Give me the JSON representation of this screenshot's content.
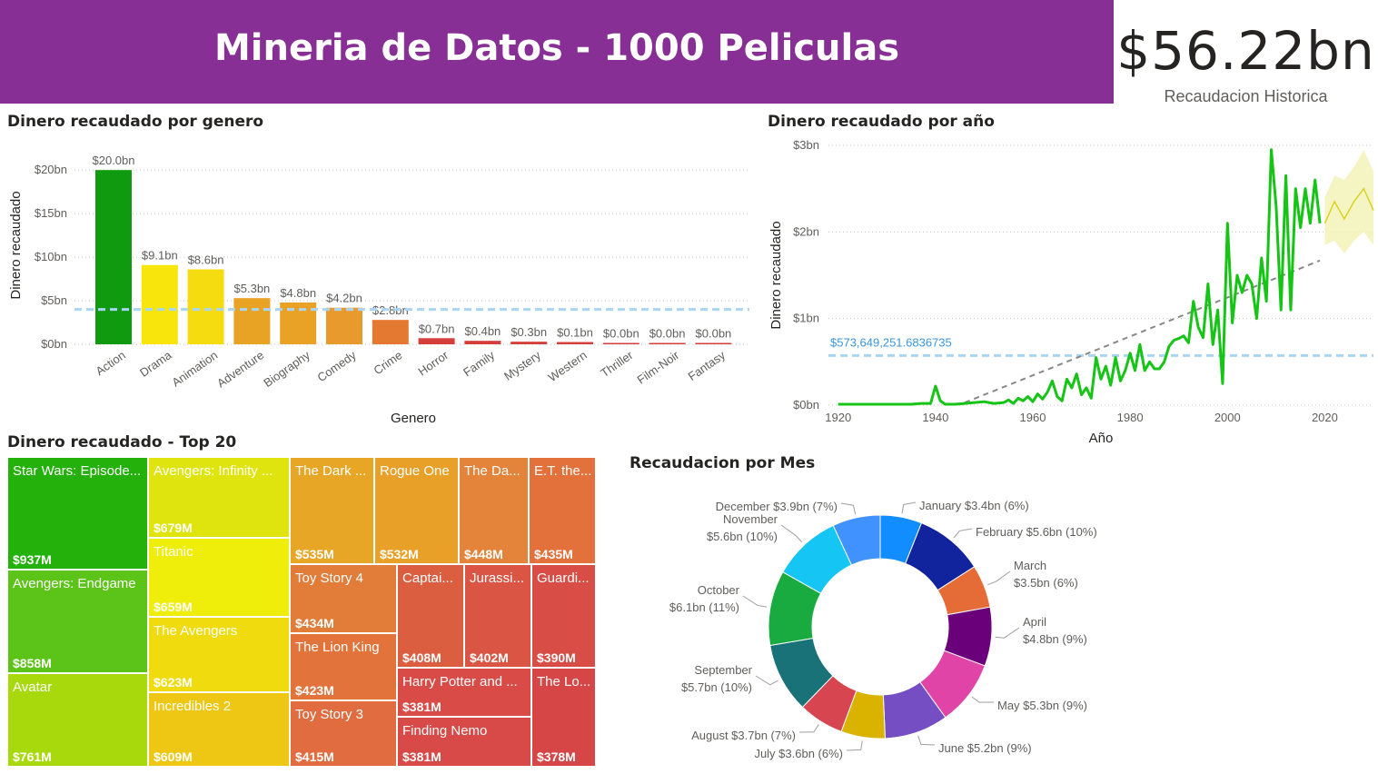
{
  "header": {
    "title": "Mineria de Datos - 1000 Peliculas"
  },
  "kpi": {
    "value": "$56.22bn",
    "label": "Recaudacion Historica"
  },
  "genre_chart": {
    "title": "Dinero recaudado por genero",
    "chart_data": {
      "type": "bar",
      "xlabel": "Genero",
      "ylabel": "Dinero recaudado",
      "ylim": [
        0,
        22
      ],
      "yticks": [
        "$0bn",
        "$5bn",
        "$10bn",
        "$15bn",
        "$20bn"
      ],
      "categories": [
        "Action",
        "Drama",
        "Animation",
        "Adventure",
        "Biography",
        "Comedy",
        "Crime",
        "Horror",
        "Family",
        "Mystery",
        "Western",
        "Thriller",
        "Film-Noir",
        "Fantasy"
      ],
      "values": [
        20.0,
        9.1,
        8.6,
        5.3,
        4.8,
        4.2,
        2.8,
        0.7,
        0.4,
        0.3,
        0.1,
        0.0,
        0.0,
        0.0
      ],
      "labels": [
        "$20.0bn",
        "$9.1bn",
        "$8.6bn",
        "$5.3bn",
        "$4.8bn",
        "$4.2bn",
        "$2.8bn",
        "$0.7bn",
        "$0.4bn",
        "$0.3bn",
        "$0.1bn",
        "$0.0bn",
        "$0.0bn",
        "$0.0bn"
      ],
      "colors": [
        "#0f9a0f",
        "#f7e50c",
        "#f5dc10",
        "#e8a325",
        "#e9a226",
        "#e99a2c",
        "#e47a32",
        "#d43f3a",
        "#d43f3a",
        "#d43f3a",
        "#d43f3a",
        "#d43f3a",
        "#d43f3a",
        "#d43f3a"
      ],
      "average_line": 4.0,
      "grid": true
    }
  },
  "year_chart": {
    "title": "Dinero recaudado por año",
    "chart_data": {
      "type": "line",
      "xlabel": "Año",
      "ylabel": "Dinero recaudado",
      "xlim": [
        1918,
        2030
      ],
      "ylim": [
        0,
        3
      ],
      "xticks": [
        1920,
        1940,
        1960,
        1980,
        2000,
        2020
      ],
      "yticks": [
        "$0bn",
        "$1bn",
        "$2bn",
        "$3bn"
      ],
      "series": [
        {
          "x": [
            1920,
            1925,
            1930,
            1935,
            1937,
            1939,
            1940,
            1941,
            1942,
            1944,
            1946,
            1948,
            1950,
            1952,
            1954,
            1955,
            1956,
            1957,
            1958,
            1959,
            1960,
            1961,
            1962,
            1963,
            1964,
            1965,
            1966,
            1967,
            1968,
            1969,
            1970,
            1971,
            1972,
            1973,
            1974,
            1975,
            1976,
            1977,
            1978,
            1979,
            1980,
            1981,
            1982,
            1983,
            1984,
            1985,
            1986,
            1987,
            1988,
            1989,
            1990,
            1991,
            1992,
            1993,
            1994,
            1995,
            1996,
            1997,
            1998,
            1999,
            2000,
            2001,
            2002,
            2003,
            2004,
            2005,
            2006,
            2007,
            2008,
            2009,
            2010,
            2011,
            2012,
            2013,
            2014,
            2015,
            2016,
            2017,
            2018,
            2019
          ],
          "values": [
            0.01,
            0.01,
            0.01,
            0.01,
            0.02,
            0.02,
            0.22,
            0.05,
            0.01,
            0.01,
            0.02,
            0.03,
            0.04,
            0.02,
            0.03,
            0.06,
            0.02,
            0.08,
            0.05,
            0.1,
            0.04,
            0.13,
            0.07,
            0.15,
            0.28,
            0.1,
            0.05,
            0.3,
            0.2,
            0.36,
            0.12,
            0.2,
            0.08,
            0.55,
            0.3,
            0.45,
            0.23,
            0.55,
            0.28,
            0.4,
            0.6,
            0.4,
            0.7,
            0.4,
            0.5,
            0.42,
            0.42,
            0.5,
            0.68,
            0.75,
            0.77,
            0.8,
            0.72,
            1.2,
            0.9,
            0.78,
            1.4,
            0.7,
            1.1,
            0.25,
            2.1,
            0.95,
            1.5,
            1.3,
            1.5,
            1.4,
            1.0,
            1.7,
            1.2,
            2.95,
            2.3,
            1.1,
            2.65,
            1.1,
            2.5,
            2.05,
            2.5,
            2.1,
            2.6,
            2.1
          ]
        }
      ],
      "forecast": {
        "x": [
          2020,
          2022,
          2024,
          2026,
          2028,
          2030
        ],
        "values": [
          2.1,
          2.35,
          2.15,
          2.35,
          2.5,
          2.25
        ],
        "upper": [
          2.4,
          2.65,
          2.6,
          2.75,
          2.95,
          2.7
        ],
        "lower": [
          1.85,
          1.9,
          1.75,
          1.9,
          2.0,
          1.85
        ]
      },
      "trend": {
        "x": [
          1946,
          2019
        ],
        "values": [
          0.03,
          1.67
        ]
      },
      "average_line": {
        "value": 0.5736,
        "label": "$573,649,251.6836735"
      },
      "grid": true
    }
  },
  "treemap": {
    "title": "Dinero recaudado - Top 20",
    "chart_data": {
      "type": "treemap",
      "items": [
        {
          "name": "Star Wars: Episode...",
          "label": "$937M",
          "value": 937,
          "color": "#25b10c"
        },
        {
          "name": "Avengers: Endgame",
          "label": "$858M",
          "value": 858,
          "color": "#5cc318"
        },
        {
          "name": "Avatar",
          "label": "$761M",
          "value": 761,
          "color": "#a7d90d"
        },
        {
          "name": "Avengers: Infinity ...",
          "label": "$679M",
          "value": 679,
          "color": "#dfe40e"
        },
        {
          "name": "Titanic",
          "label": "$659M",
          "value": 659,
          "color": "#efed0a"
        },
        {
          "name": "The Avengers",
          "label": "$623M",
          "value": 623,
          "color": "#f0db0f"
        },
        {
          "name": "Incredibles 2",
          "label": "$609M",
          "value": 609,
          "color": "#edc713"
        },
        {
          "name": "The Dark ...",
          "label": "$535M",
          "value": 535,
          "color": "#e7a625"
        },
        {
          "name": "Rogue One",
          "label": "$532M",
          "value": 532,
          "color": "#e8a028"
        },
        {
          "name": "The Da...",
          "label": "$448M",
          "value": 448,
          "color": "#e4833a"
        },
        {
          "name": "E.T. the...",
          "label": "$435M",
          "value": 435,
          "color": "#e3713b"
        },
        {
          "name": "Toy Story 4",
          "label": "$434M",
          "value": 434,
          "color": "#e27c39"
        },
        {
          "name": "The Lion King",
          "label": "$423M",
          "value": 423,
          "color": "#e2743b"
        },
        {
          "name": "Toy Story 3",
          "label": "$415M",
          "value": 415,
          "color": "#e06c3f"
        },
        {
          "name": "Captai...",
          "label": "$408M",
          "value": 408,
          "color": "#dc5e41"
        },
        {
          "name": "Jurassi...",
          "label": "$402M",
          "value": 402,
          "color": "#da5544"
        },
        {
          "name": "Guardi...",
          "label": "$390M",
          "value": 390,
          "color": "#d84d45"
        },
        {
          "name": "Harry Potter and ...",
          "label": "$381M",
          "value": 381,
          "color": "#d84b47"
        },
        {
          "name": "Finding Nemo",
          "label": "$381M",
          "value": 381,
          "color": "#d84a47"
        },
        {
          "name": "The Lo...",
          "label": "$378M",
          "value": 378,
          "color": "#d64646"
        }
      ]
    }
  },
  "month_chart": {
    "title": "Recaudacion por Mes",
    "chart_data": {
      "type": "pie",
      "donut": true,
      "slices": [
        {
          "name": "January",
          "label": "January $3.4bn (6%)",
          "value": 3.4,
          "color": "#118dff"
        },
        {
          "name": "February",
          "label": "February $5.6bn (10%)",
          "value": 5.6,
          "color": "#12239e"
        },
        {
          "name": "March",
          "label": [
            "March",
            "$3.5bn (6%)"
          ],
          "value": 3.5,
          "color": "#e66c37"
        },
        {
          "name": "April",
          "label": [
            "April",
            "$4.8bn (9%)"
          ],
          "value": 4.8,
          "color": "#6b007b"
        },
        {
          "name": "May",
          "label": "May $5.3bn (9%)",
          "value": 5.3,
          "color": "#e044a7"
        },
        {
          "name": "June",
          "label": "June $5.2bn (9%)",
          "value": 5.2,
          "color": "#744ec2"
        },
        {
          "name": "July",
          "label": "July $3.6bn (6%)",
          "value": 3.6,
          "color": "#d9b300"
        },
        {
          "name": "August",
          "label": "August $3.7bn (7%)",
          "value": 3.7,
          "color": "#d64550"
        },
        {
          "name": "September",
          "label": [
            "September",
            "$5.7bn (10%)"
          ],
          "value": 5.7,
          "color": "#197278"
        },
        {
          "name": "October",
          "label": [
            "October",
            "$6.1bn (11%)"
          ],
          "value": 6.1,
          "color": "#1aab40"
        },
        {
          "name": "November",
          "label": [
            "November",
            "$5.6bn (10%)"
          ],
          "value": 5.6,
          "color": "#15c6f4"
        },
        {
          "name": "December",
          "label": "December $3.9bn (7%)",
          "value": 3.9,
          "color": "#4092ff"
        }
      ]
    }
  }
}
